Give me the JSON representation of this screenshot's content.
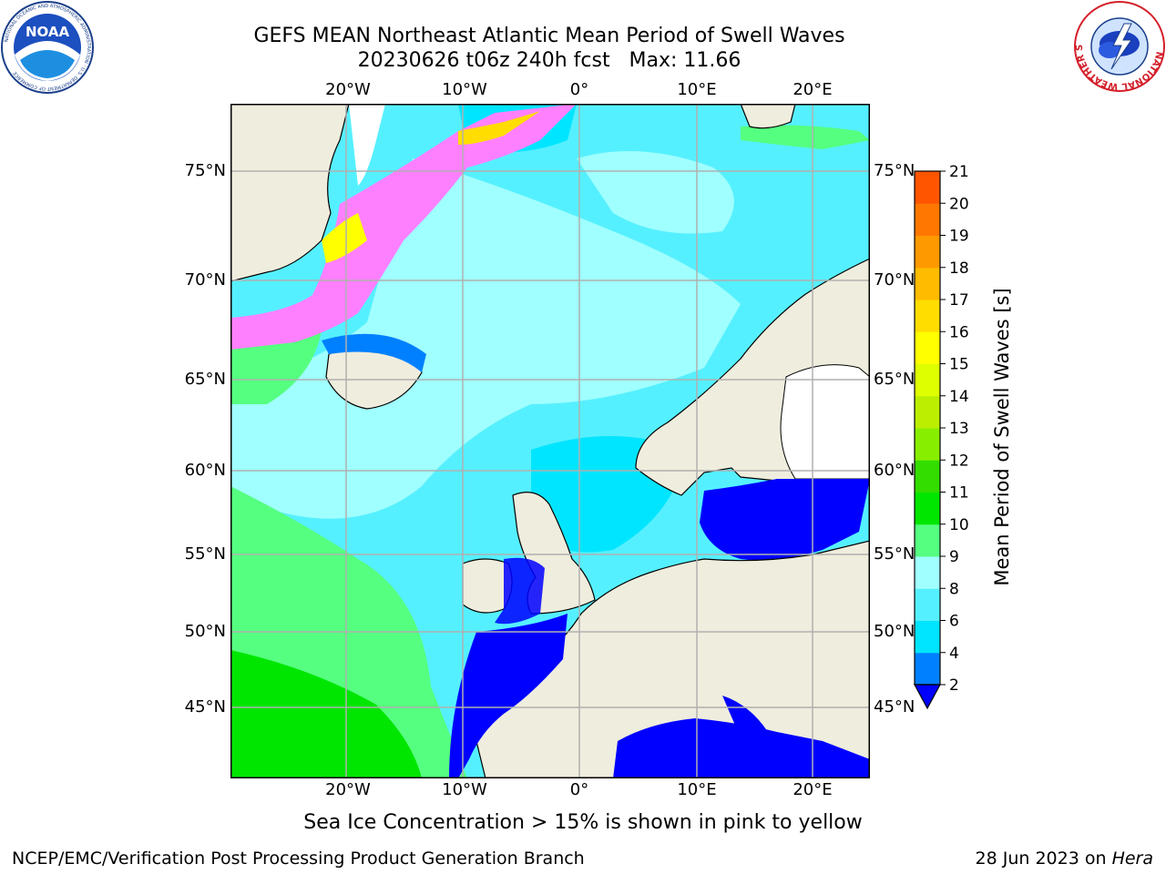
{
  "header": {
    "title_line1": "GEFS MEAN Northeast Atlantic Mean Period of Swell Waves",
    "title_line2": "20230626 t06z 240h fcst   Max: 11.66"
  },
  "logos": {
    "noaa_text": "NOAA",
    "noaa_ring_text": "NATIONAL OCEANIC AND ATMOSPHERIC ADMINISTRATION · U.S. DEPARTMENT OF COMMERCE",
    "nws_ring_text": "NATIONAL WEATHER SERVICE"
  },
  "map": {
    "lon_labels": [
      "20°W",
      "10°W",
      "0°",
      "10°E",
      "20°E"
    ],
    "lat_labels": [
      "75°N",
      "70°N",
      "65°N",
      "60°N",
      "55°N",
      "50°N",
      "45°N"
    ],
    "colors": {
      "land": "#efeddd",
      "grid": "#b0b0b0",
      "ice": "#ff80ff"
    }
  },
  "colorbar": {
    "label": "Mean Period of Swell Waves [s]",
    "ticks": [
      "2",
      "4",
      "6",
      "8",
      "9",
      "10",
      "11",
      "12",
      "13",
      "14",
      "15",
      "16",
      "17",
      "18",
      "19",
      "20",
      "21"
    ],
    "colors": [
      "#0080ff",
      "#00e5ff",
      "#55f0ff",
      "#a0ffff",
      "#55ff80",
      "#00e600",
      "#33dd00",
      "#88ee00",
      "#bbee00",
      "#ddff00",
      "#ffff00",
      "#ffdd00",
      "#ffbb00",
      "#ff9900",
      "#ff7700",
      "#ff5500",
      "#ff0000"
    ],
    "under_color": "#0000ff"
  },
  "note": "Sea Ice Concentration > 15% is shown in pink to yellow",
  "footer": {
    "left": "NCEP/EMC/Verification Post Processing Product Generation Branch",
    "right_date": "28 Jun 2023 on ",
    "right_host": "Hera"
  }
}
